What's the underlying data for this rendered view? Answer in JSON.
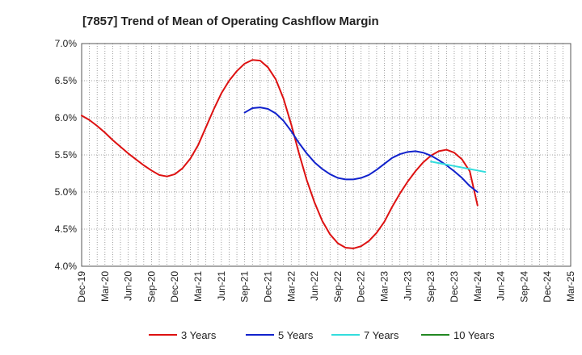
{
  "chart_data": {
    "type": "line",
    "title": "[7857]  Trend of Mean of Operating Cashflow Margin",
    "xlabel": "",
    "ylabel": "",
    "ylim": [
      4.0,
      7.0
    ],
    "yticks": [
      "4.0%",
      "4.5%",
      "5.0%",
      "5.5%",
      "6.0%",
      "6.5%",
      "7.0%"
    ],
    "x_ticks": [
      "Dec-19",
      "Mar-20",
      "Jun-20",
      "Sep-20",
      "Dec-20",
      "Mar-21",
      "Jun-21",
      "Sep-21",
      "Dec-21",
      "Mar-22",
      "Jun-22",
      "Sep-22",
      "Dec-22",
      "Mar-23",
      "Jun-23",
      "Sep-23",
      "Dec-23",
      "Mar-24",
      "Jun-24",
      "Sep-24",
      "Dec-24",
      "Mar-25"
    ],
    "x_start": "2019-12",
    "grid": true,
    "legend_position": "bottom",
    "series": [
      {
        "name": "3 Years",
        "color": "#dd1111",
        "start": "2019-12",
        "values": [
          6.03,
          5.97,
          5.89,
          5.8,
          5.7,
          5.61,
          5.52,
          5.44,
          5.36,
          5.29,
          5.23,
          5.21,
          5.24,
          5.32,
          5.45,
          5.63,
          5.87,
          6.11,
          6.33,
          6.5,
          6.63,
          6.73,
          6.78,
          6.77,
          6.68,
          6.52,
          6.26,
          5.91,
          5.52,
          5.16,
          4.86,
          4.61,
          4.43,
          4.31,
          4.25,
          4.24,
          4.27,
          4.34,
          4.45,
          4.6,
          4.8,
          4.98,
          5.14,
          5.28,
          5.4,
          5.49,
          5.55,
          5.57,
          5.53,
          5.44,
          5.28,
          4.82
        ]
      },
      {
        "name": "5 Years",
        "color": "#1122cc",
        "start": "2021-09",
        "values": [
          6.07,
          6.13,
          6.14,
          6.12,
          6.06,
          5.96,
          5.82,
          5.66,
          5.52,
          5.4,
          5.31,
          5.24,
          5.19,
          5.17,
          5.17,
          5.19,
          5.23,
          5.3,
          5.38,
          5.46,
          5.51,
          5.54,
          5.55,
          5.53,
          5.49,
          5.43,
          5.36,
          5.28,
          5.19,
          5.08,
          5.0
        ]
      },
      {
        "name": "7 Years",
        "color": "#33dddd",
        "start": "2023-09",
        "values": [
          5.41,
          5.39,
          5.37,
          5.35,
          5.33,
          5.31,
          5.29,
          5.27
        ]
      },
      {
        "name": "10 Years",
        "color": "#228822",
        "start": "2024-03",
        "values": []
      }
    ]
  }
}
